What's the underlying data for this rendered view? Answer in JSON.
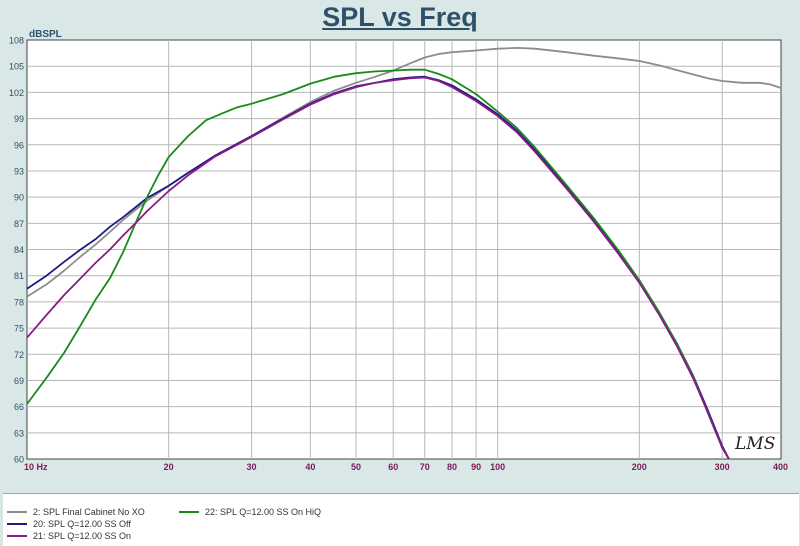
{
  "title": "SPL vs Freq",
  "chart_data": {
    "type": "line",
    "title": "SPL vs Freq",
    "ylabel": "dBSPL",
    "xlabel": "",
    "x_scale": "log",
    "xlim": [
      10,
      400
    ],
    "ylim": [
      60,
      108
    ],
    "y_ticks": [
      "60",
      "63",
      "66",
      "69",
      "72",
      "75",
      "78",
      "81",
      "84",
      "87",
      "90",
      "93",
      "96",
      "99",
      "102",
      "105",
      "108"
    ],
    "x_tick_labels": [
      {
        "value": 10,
        "label": "10  Hz"
      },
      {
        "value": 20,
        "label": "20"
      },
      {
        "value": 30,
        "label": "30"
      },
      {
        "value": 40,
        "label": "40"
      },
      {
        "value": 50,
        "label": "50"
      },
      {
        "value": 60,
        "label": "60"
      },
      {
        "value": 70,
        "label": "70"
      },
      {
        "value": 80,
        "label": "80"
      },
      {
        "value": 90,
        "label": "90"
      },
      {
        "value": 100,
        "label": "100"
      },
      {
        "value": 200,
        "label": "200"
      },
      {
        "value": 300,
        "label": "300"
      },
      {
        "value": 400,
        "label": "400"
      }
    ],
    "grid": true,
    "series": [
      {
        "name": "2: SPL Final Cabinet No XO",
        "color": "#8c8c8c",
        "points": [
          [
            10,
            78.6
          ],
          [
            11,
            80
          ],
          [
            12,
            81.6
          ],
          [
            13,
            83.2
          ],
          [
            14,
            84.6
          ],
          [
            15,
            86
          ],
          [
            16,
            87.4
          ],
          [
            18,
            89.6
          ],
          [
            20,
            91.3
          ],
          [
            22,
            92.8
          ],
          [
            25,
            94.7
          ],
          [
            30,
            97
          ],
          [
            35,
            99.1
          ],
          [
            40,
            100.9
          ],
          [
            45,
            102.2
          ],
          [
            50,
            103.1
          ],
          [
            55,
            103.8
          ],
          [
            60,
            104.5
          ],
          [
            65,
            105.3
          ],
          [
            70,
            106
          ],
          [
            75,
            106.4
          ],
          [
            80,
            106.6
          ],
          [
            90,
            106.8
          ],
          [
            100,
            107
          ],
          [
            110,
            107.1
          ],
          [
            120,
            107
          ],
          [
            140,
            106.6
          ],
          [
            160,
            106.2
          ],
          [
            180,
            105.9
          ],
          [
            200,
            105.6
          ],
          [
            220,
            105.1
          ],
          [
            250,
            104.3
          ],
          [
            280,
            103.6
          ],
          [
            300,
            103.3
          ],
          [
            330,
            103.1
          ],
          [
            360,
            103.1
          ],
          [
            380,
            102.9
          ],
          [
            400,
            102.5
          ]
        ]
      },
      {
        "name": "20: SPL Q=12.00 SS Off",
        "color": "#1c1c82",
        "points": [
          [
            10,
            79.5
          ],
          [
            11,
            81
          ],
          [
            12,
            82.6
          ],
          [
            13,
            84
          ],
          [
            14,
            85.2
          ],
          [
            15,
            86.6
          ],
          [
            16,
            87.7
          ],
          [
            18,
            89.9
          ],
          [
            20,
            91.3
          ],
          [
            22,
            92.8
          ],
          [
            25,
            94.7
          ],
          [
            30,
            97
          ],
          [
            35,
            99
          ],
          [
            40,
            100.7
          ],
          [
            45,
            101.9
          ],
          [
            50,
            102.7
          ],
          [
            55,
            103.1
          ],
          [
            60,
            103.5
          ],
          [
            65,
            103.7
          ],
          [
            70,
            103.8
          ],
          [
            75,
            103.4
          ],
          [
            80,
            102.8
          ],
          [
            90,
            101.2
          ],
          [
            100,
            99.5
          ],
          [
            110,
            97.6
          ],
          [
            120,
            95.4
          ],
          [
            140,
            91.2
          ],
          [
            160,
            87.4
          ],
          [
            180,
            83.8
          ],
          [
            200,
            80.4
          ],
          [
            220,
            76.8
          ],
          [
            240,
            73.3
          ],
          [
            260,
            69.6
          ],
          [
            280,
            65.5
          ],
          [
            300,
            61.5
          ],
          [
            310,
            60
          ]
        ]
      },
      {
        "name": "22: SPL Q=12.00 SS On HiQ",
        "color": "#1a8a1a",
        "points": [
          [
            10,
            66.3
          ],
          [
            11,
            69.3
          ],
          [
            12,
            72.2
          ],
          [
            13,
            75.3
          ],
          [
            14,
            78.3
          ],
          [
            15,
            80.7
          ],
          [
            16,
            83.7
          ],
          [
            17,
            87
          ],
          [
            18,
            90
          ],
          [
            19,
            92.5
          ],
          [
            20,
            94.6
          ],
          [
            22,
            97
          ],
          [
            24,
            98.8
          ],
          [
            26,
            99.6
          ],
          [
            28,
            100.3
          ],
          [
            30,
            100.7
          ],
          [
            35,
            101.8
          ],
          [
            40,
            103
          ],
          [
            45,
            103.8
          ],
          [
            50,
            104.2
          ],
          [
            55,
            104.4
          ],
          [
            60,
            104.5
          ],
          [
            65,
            104.6
          ],
          [
            70,
            104.6
          ],
          [
            75,
            104.1
          ],
          [
            80,
            103.5
          ],
          [
            90,
            101.8
          ],
          [
            100,
            99.8
          ],
          [
            110,
            97.9
          ],
          [
            120,
            95.7
          ],
          [
            140,
            91.4
          ],
          [
            160,
            87.6
          ],
          [
            180,
            84
          ],
          [
            200,
            80.5
          ],
          [
            220,
            76.9
          ],
          [
            240,
            73.3
          ],
          [
            260,
            69.5
          ],
          [
            280,
            65.2
          ],
          [
            300,
            61.3
          ],
          [
            310,
            60
          ]
        ]
      },
      {
        "name": "21: SPL Q=12.00 SS On",
        "color": "#8a1a8a",
        "points": [
          [
            10,
            73.9
          ],
          [
            11,
            76.5
          ],
          [
            12,
            78.8
          ],
          [
            13,
            80.7
          ],
          [
            14,
            82.5
          ],
          [
            15,
            84
          ],
          [
            16,
            85.6
          ],
          [
            17,
            87
          ],
          [
            18,
            88.4
          ],
          [
            20,
            90.7
          ],
          [
            22,
            92.5
          ],
          [
            25,
            94.6
          ],
          [
            30,
            96.9
          ],
          [
            35,
            98.9
          ],
          [
            40,
            100.6
          ],
          [
            45,
            101.8
          ],
          [
            50,
            102.6
          ],
          [
            55,
            103.1
          ],
          [
            60,
            103.4
          ],
          [
            65,
            103.6
          ],
          [
            70,
            103.7
          ],
          [
            75,
            103.3
          ],
          [
            80,
            102.6
          ],
          [
            90,
            101
          ],
          [
            100,
            99.3
          ],
          [
            110,
            97.4
          ],
          [
            120,
            95.2
          ],
          [
            140,
            91
          ],
          [
            160,
            87.2
          ],
          [
            180,
            83.6
          ],
          [
            200,
            80.2
          ],
          [
            220,
            76.6
          ],
          [
            240,
            73
          ],
          [
            260,
            69.3
          ],
          [
            280,
            65.3
          ],
          [
            300,
            61.3
          ],
          [
            310,
            60
          ]
        ]
      }
    ]
  },
  "legend": [
    {
      "label": "2: SPL Final Cabinet No XO",
      "color": "#8c8c8c"
    },
    {
      "label": "20: SPL Q=12.00 SS Off",
      "color": "#1c1c82"
    },
    {
      "label": "21: SPL Q=12.00 SS On",
      "color": "#8a1a8a"
    },
    {
      "label": "22: SPL Q=12.00 SS On HiQ",
      "color": "#1a8a1a"
    }
  ],
  "watermark": "LMS"
}
